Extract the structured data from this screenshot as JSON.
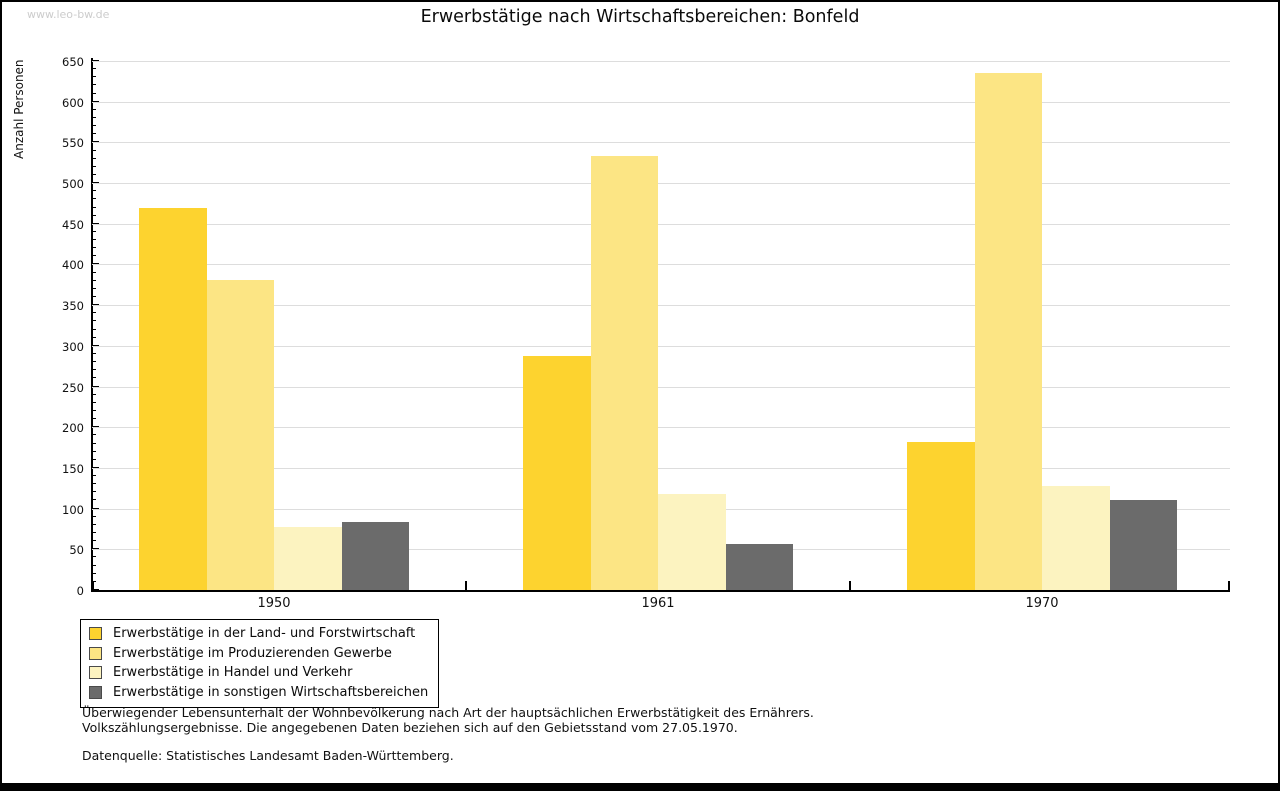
{
  "watermark": "www.leo-bw.de",
  "header": {
    "title": "Erwerbstätige nach Wirtschaftsbereichen: Bonfeld"
  },
  "footnote": {
    "line1": "Überwiegender Lebensunterhalt der Wohnbevölkerung nach Art der hauptsächlichen Erwerbstätigkeit des Ernährers.",
    "line2": "Volkszählungsergebnisse. Die angegebenen Daten beziehen sich auf den Gebietsstand vom 27.05.1970.",
    "source": "Datenquelle: Statistisches Landesamt Baden-Württemberg."
  },
  "colors": {
    "land_forstwirtschaft": "#FDD32F",
    "produzierendes_gewerbe": "#FCE584",
    "handel_verkehr": "#FCF3C0",
    "sonstige": "#6B6B6B",
    "gridline": "#DDDDDD",
    "axis": "#000000",
    "watermark": "#CCCCCC"
  },
  "chart_data": {
    "type": "bar",
    "title": "Erwerbstätige nach Wirtschaftsbereichen: Bonfeld",
    "categories": [
      "1950",
      "1961",
      "1970"
    ],
    "series": [
      {
        "name": "Erwerbstätige in der Land- und Forstwirtschaft",
        "color": "#FDD32F",
        "values": [
          470,
          288,
          182
        ]
      },
      {
        "name": "Erwerbstätige im Produzierenden Gewerbe",
        "color": "#FCE584",
        "values": [
          381,
          533,
          635
        ]
      },
      {
        "name": "Erwerbstätige in Handel und Verkehr",
        "color": "#FCF3C0",
        "values": [
          78,
          118,
          128
        ]
      },
      {
        "name": "Erwerbstätige in sonstigen Wirtschaftsbereichen",
        "color": "#6B6B6B",
        "values": [
          83,
          57,
          111
        ]
      }
    ],
    "xlabel": "",
    "ylabel": "Anzahl Personen",
    "ylim": [
      0,
      650
    ],
    "ytick_step": 50,
    "ytick_minor_step": 10,
    "grid": true,
    "legend_position": "bottom-left"
  }
}
